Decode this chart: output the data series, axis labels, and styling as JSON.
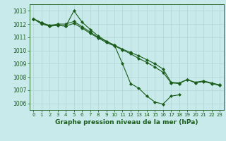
{
  "title": "Graphe pression niveau de la mer (hPa)",
  "bg_color": "#c8eaea",
  "grid_color": "#b0d4d4",
  "line_color": "#1a5c1a",
  "x_ticks": [
    0,
    1,
    2,
    3,
    4,
    5,
    6,
    7,
    8,
    9,
    10,
    11,
    12,
    13,
    14,
    15,
    16,
    17,
    18,
    19,
    20,
    21,
    22,
    23
  ],
  "ylim": [
    1005.5,
    1013.5
  ],
  "yticks": [
    1006,
    1007,
    1008,
    1009,
    1010,
    1011,
    1012,
    1013
  ],
  "series1": [
    1012.4,
    1012.1,
    1011.9,
    1012.0,
    1012.0,
    1012.2,
    1011.8,
    1011.4,
    1011.0,
    1010.7,
    1010.4,
    1010.1,
    1009.85,
    1009.6,
    1009.3,
    1009.0,
    1008.6,
    1007.6,
    1007.55,
    1007.8,
    1007.6,
    1007.7,
    1007.55,
    1007.4
  ],
  "series2": [
    1012.4,
    1012.0,
    1011.85,
    1011.9,
    1011.85,
    1013.0,
    1012.15,
    1011.6,
    1011.1,
    1010.7,
    1010.4,
    1009.0,
    1007.5,
    1007.15,
    1006.55,
    1006.1,
    1005.95,
    1006.55,
    1006.65,
    null,
    null,
    null,
    null,
    null
  ],
  "series3": [
    1012.4,
    1012.1,
    1011.85,
    1011.9,
    1011.85,
    1012.05,
    1011.7,
    1011.3,
    1010.95,
    1010.6,
    1010.35,
    1010.05,
    1009.75,
    1009.4,
    1009.1,
    1008.75,
    1008.35,
    1007.55,
    1007.5,
    1007.8,
    1007.55,
    1007.65,
    1007.5,
    1007.35
  ],
  "figsize": [
    3.2,
    2.0
  ],
  "dpi": 100
}
